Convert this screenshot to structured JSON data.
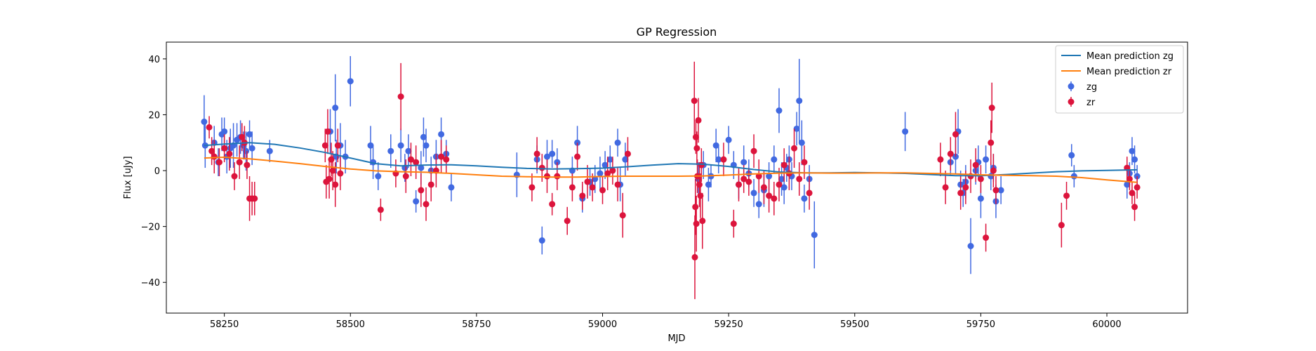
{
  "chart_data": {
    "type": "scatter",
    "title": "GP Regression",
    "xlabel": "MJD",
    "ylabel": "Flux [uJy]",
    "xlim": [
      58135,
      60160
    ],
    "ylim": [
      -51,
      46
    ],
    "xticks": [
      58250,
      58500,
      58750,
      59000,
      59250,
      59500,
      59750,
      60000
    ],
    "yticks": [
      -40,
      -20,
      0,
      20,
      40
    ],
    "legend_position": "top-right",
    "series": [
      {
        "name": "Mean prediction zg",
        "kind": "line",
        "color": "#1f77b4",
        "x": [
          58210,
          58250,
          58300,
          58350,
          58400,
          58450,
          58500,
          58550,
          58600,
          58650,
          58700,
          58750,
          58800,
          58850,
          58900,
          58950,
          59000,
          59050,
          59100,
          59150,
          59200,
          59250,
          59300,
          59350,
          59400,
          59450,
          59500,
          59550,
          59600,
          59650,
          59700,
          59750,
          59800,
          59850,
          59900,
          59950,
          60000,
          60060
        ],
        "y": [
          9.0,
          9.5,
          10.0,
          9.4,
          8.1,
          6.5,
          4.5,
          2.5,
          1.7,
          2.0,
          2.1,
          1.7,
          1.2,
          0.8,
          0.6,
          0.7,
          0.9,
          1.4,
          2.0,
          2.5,
          2.3,
          1.5,
          0.4,
          -0.5,
          -0.8,
          -0.8,
          -0.7,
          -0.8,
          -1.0,
          -1.4,
          -1.8,
          -1.8,
          -1.4,
          -0.9,
          -0.4,
          -0.1,
          0.1,
          0.3
        ]
      },
      {
        "name": "Mean prediction zr",
        "kind": "line",
        "color": "#ff7f0e",
        "x": [
          58210,
          58250,
          58300,
          58350,
          58400,
          58450,
          58500,
          58550,
          58600,
          58650,
          58700,
          58750,
          58800,
          58850,
          58900,
          58950,
          59000,
          59050,
          59100,
          59150,
          59200,
          59250,
          59300,
          59350,
          59400,
          59450,
          59500,
          59550,
          59600,
          59650,
          59700,
          59750,
          59800,
          59850,
          59900,
          59950,
          60000,
          60060
        ],
        "y": [
          4.5,
          4.8,
          4.2,
          3.4,
          2.5,
          1.5,
          0.6,
          -0.1,
          -0.4,
          -0.6,
          -1.0,
          -1.5,
          -2.0,
          -2.2,
          -2.3,
          -2.3,
          -2.1,
          -2.0,
          -2.0,
          -2.0,
          -1.9,
          -1.6,
          -1.2,
          -0.9,
          -0.8,
          -0.9,
          -0.9,
          -0.8,
          -0.8,
          -1.0,
          -1.2,
          -1.5,
          -1.7,
          -1.8,
          -2.0,
          -2.5,
          -3.3,
          -4.2
        ]
      },
      {
        "name": "zg",
        "kind": "errorbar",
        "color": "#4169e1",
        "points": [
          [
            58210,
            17.5,
            9.5
          ],
          [
            58212,
            9,
            8
          ],
          [
            58230,
            10,
            6
          ],
          [
            58238,
            3,
            5
          ],
          [
            58245,
            13,
            6
          ],
          [
            58250,
            14,
            5
          ],
          [
            58255,
            5,
            6
          ],
          [
            58262,
            8,
            7
          ],
          [
            58268,
            9,
            8
          ],
          [
            58275,
            11,
            6
          ],
          [
            58282,
            12,
            6
          ],
          [
            58288,
            9,
            5
          ],
          [
            58293,
            7,
            7
          ],
          [
            58300,
            13,
            5
          ],
          [
            58305,
            8,
            6
          ],
          [
            58340,
            7,
            4
          ],
          [
            58460,
            14,
            8
          ],
          [
            58470,
            22.5,
            12
          ],
          [
            58472,
            5,
            6
          ],
          [
            58480,
            9,
            8
          ],
          [
            58490,
            5,
            6
          ],
          [
            58500,
            32,
            9
          ],
          [
            58540,
            9,
            7
          ],
          [
            58545,
            3,
            6
          ],
          [
            58555,
            -2,
            5
          ],
          [
            58580,
            7,
            6
          ],
          [
            58600,
            9,
            6
          ],
          [
            58608,
            1,
            5
          ],
          [
            58615,
            7,
            6
          ],
          [
            58630,
            -11,
            4
          ],
          [
            58640,
            1,
            6
          ],
          [
            58645,
            12,
            7
          ],
          [
            58650,
            9,
            6
          ],
          [
            58660,
            0,
            5
          ],
          [
            58670,
            5,
            6
          ],
          [
            58680,
            13,
            6
          ],
          [
            58690,
            6,
            5
          ],
          [
            58700,
            -6,
            5
          ],
          [
            58830,
            -1.5,
            8
          ],
          [
            58870,
            4,
            5
          ],
          [
            58880,
            -25,
            5
          ],
          [
            58890,
            5,
            6
          ],
          [
            58900,
            6,
            5
          ],
          [
            58910,
            3,
            5
          ],
          [
            58940,
            0,
            5
          ],
          [
            58950,
            10,
            6
          ],
          [
            58960,
            -10,
            5
          ],
          [
            58975,
            -4,
            5
          ],
          [
            58985,
            -3,
            5
          ],
          [
            58995,
            -1,
            6
          ],
          [
            59005,
            2,
            5
          ],
          [
            59015,
            4,
            5
          ],
          [
            59030,
            10,
            5
          ],
          [
            59035,
            -5,
            6
          ],
          [
            59045,
            4,
            6
          ],
          [
            59190,
            -3,
            6
          ],
          [
            59200,
            2,
            5
          ],
          [
            59210,
            -5,
            6
          ],
          [
            59215,
            -2,
            4
          ],
          [
            59225,
            9,
            6
          ],
          [
            59230,
            4,
            5
          ],
          [
            59250,
            11,
            5
          ],
          [
            59260,
            2,
            5
          ],
          [
            59270,
            -5,
            5
          ],
          [
            59280,
            3,
            6
          ],
          [
            59290,
            -1,
            5
          ],
          [
            59300,
            -8,
            5
          ],
          [
            59310,
            -12,
            5
          ],
          [
            59320,
            -7,
            6
          ],
          [
            59330,
            -2,
            5
          ],
          [
            59340,
            4,
            5
          ],
          [
            59350,
            21.5,
            8
          ],
          [
            59355,
            -3,
            6
          ],
          [
            59360,
            -6,
            6
          ],
          [
            59365,
            1,
            5
          ],
          [
            59370,
            4,
            5
          ],
          [
            59375,
            -2,
            5
          ],
          [
            59385,
            15,
            6
          ],
          [
            59390,
            25,
            15
          ],
          [
            59395,
            10,
            8
          ],
          [
            59400,
            -10,
            5
          ],
          [
            59410,
            -3,
            5
          ],
          [
            59420,
            -23,
            12
          ],
          [
            59600,
            14,
            7
          ],
          [
            59690,
            3,
            5
          ],
          [
            59700,
            5,
            6
          ],
          [
            59705,
            14,
            8
          ],
          [
            59710,
            -5,
            5
          ],
          [
            59715,
            -8,
            5
          ],
          [
            59720,
            -4,
            6
          ],
          [
            59730,
            -27,
            10
          ],
          [
            59740,
            0,
            5
          ],
          [
            59745,
            3,
            6
          ],
          [
            59750,
            -10,
            7
          ],
          [
            59760,
            4,
            5
          ],
          [
            59770,
            -2,
            5
          ],
          [
            59775,
            1,
            5
          ],
          [
            59780,
            -11,
            6
          ],
          [
            59790,
            -7,
            5
          ],
          [
            59930,
            5.5,
            4
          ],
          [
            59935,
            -2,
            4
          ],
          [
            60040,
            -5,
            5
          ],
          [
            60045,
            -1,
            4
          ],
          [
            60050,
            7,
            5
          ],
          [
            60055,
            4,
            5
          ],
          [
            60060,
            -2,
            4
          ]
        ]
      },
      {
        "name": "zr",
        "kind": "errorbar",
        "color": "#dc143c",
        "points": [
          [
            58220,
            15.5,
            4
          ],
          [
            58225,
            7,
            5
          ],
          [
            58230,
            5,
            6
          ],
          [
            58240,
            3,
            5
          ],
          [
            58250,
            8,
            5
          ],
          [
            58260,
            6,
            6
          ],
          [
            58270,
            -2,
            5
          ],
          [
            58280,
            3,
            6
          ],
          [
            58285,
            12,
            5
          ],
          [
            58290,
            10,
            6
          ],
          [
            58295,
            2,
            5
          ],
          [
            58300,
            -10,
            8
          ],
          [
            58305,
            -10,
            6
          ],
          [
            58310,
            -10,
            6
          ],
          [
            58450,
            9,
            6
          ],
          [
            58452,
            -4,
            6
          ],
          [
            58455,
            14,
            8
          ],
          [
            58458,
            -3,
            7
          ],
          [
            58462,
            4,
            6
          ],
          [
            58465,
            0,
            7
          ],
          [
            58470,
            -5,
            8
          ],
          [
            58475,
            9,
            6
          ],
          [
            58480,
            -1,
            6
          ],
          [
            58560,
            -14,
            4
          ],
          [
            58590,
            -1,
            5
          ],
          [
            58600,
            26.5,
            12
          ],
          [
            58610,
            -2,
            6
          ],
          [
            58620,
            4,
            6
          ],
          [
            58630,
            3,
            6
          ],
          [
            58640,
            -7,
            6
          ],
          [
            58650,
            -12,
            6
          ],
          [
            58660,
            -5,
            6
          ],
          [
            58670,
            0,
            6
          ],
          [
            58680,
            5,
            6
          ],
          [
            58690,
            4,
            5
          ],
          [
            58860,
            -6,
            5
          ],
          [
            58870,
            6,
            6
          ],
          [
            58880,
            1,
            5
          ],
          [
            58890,
            -2,
            6
          ],
          [
            58900,
            -12,
            4
          ],
          [
            58910,
            -2,
            5
          ],
          [
            58930,
            -18,
            5
          ],
          [
            58940,
            -6,
            5
          ],
          [
            58950,
            5,
            5
          ],
          [
            58960,
            -9,
            5
          ],
          [
            58970,
            -4,
            6
          ],
          [
            58980,
            -6,
            5
          ],
          [
            59000,
            -7,
            5
          ],
          [
            59010,
            -1,
            6
          ],
          [
            59020,
            0,
            5
          ],
          [
            59030,
            -5,
            6
          ],
          [
            59040,
            -16,
            8
          ],
          [
            59050,
            6,
            6
          ],
          [
            59182,
            25,
            14
          ],
          [
            59183,
            -31,
            15
          ],
          [
            59184,
            -13,
            10
          ],
          [
            59185,
            12,
            6
          ],
          [
            59186,
            -19,
            10
          ],
          [
            59187,
            8,
            6
          ],
          [
            59188,
            -2,
            6
          ],
          [
            59190,
            18,
            8
          ],
          [
            59192,
            -5,
            8
          ],
          [
            59194,
            -9,
            8
          ],
          [
            59196,
            2,
            6
          ],
          [
            59198,
            -18,
            10
          ],
          [
            59240,
            4,
            6
          ],
          [
            59260,
            -19,
            5
          ],
          [
            59270,
            -5,
            6
          ],
          [
            59280,
            -3,
            5
          ],
          [
            59290,
            -4,
            5
          ],
          [
            59300,
            7,
            6
          ],
          [
            59310,
            -2,
            6
          ],
          [
            59320,
            -6,
            6
          ],
          [
            59330,
            -9,
            6
          ],
          [
            59340,
            -10,
            6
          ],
          [
            59350,
            -5,
            6
          ],
          [
            59360,
            2,
            6
          ],
          [
            59370,
            -1,
            6
          ],
          [
            59380,
            8,
            7
          ],
          [
            59390,
            -3,
            6
          ],
          [
            59400,
            3,
            6
          ],
          [
            59410,
            -8,
            6
          ],
          [
            59670,
            4,
            6
          ],
          [
            59680,
            -6,
            6
          ],
          [
            59690,
            6,
            6
          ],
          [
            59700,
            13,
            8
          ],
          [
            59710,
            -8,
            6
          ],
          [
            59720,
            -6,
            6
          ],
          [
            59730,
            -2,
            6
          ],
          [
            59740,
            2,
            6
          ],
          [
            59750,
            -3,
            5
          ],
          [
            59760,
            -24,
            5
          ],
          [
            59770,
            10,
            8
          ],
          [
            59772,
            22.5,
            9
          ],
          [
            59775,
            0,
            6
          ],
          [
            59780,
            -7,
            5
          ],
          [
            59910,
            -19.5,
            8
          ],
          [
            59920,
            -9,
            5
          ],
          [
            60040,
            1,
            4
          ],
          [
            60045,
            -3,
            4
          ],
          [
            60050,
            -8,
            4
          ],
          [
            60055,
            -13,
            5
          ],
          [
            60060,
            -6,
            4
          ]
        ]
      }
    ]
  }
}
